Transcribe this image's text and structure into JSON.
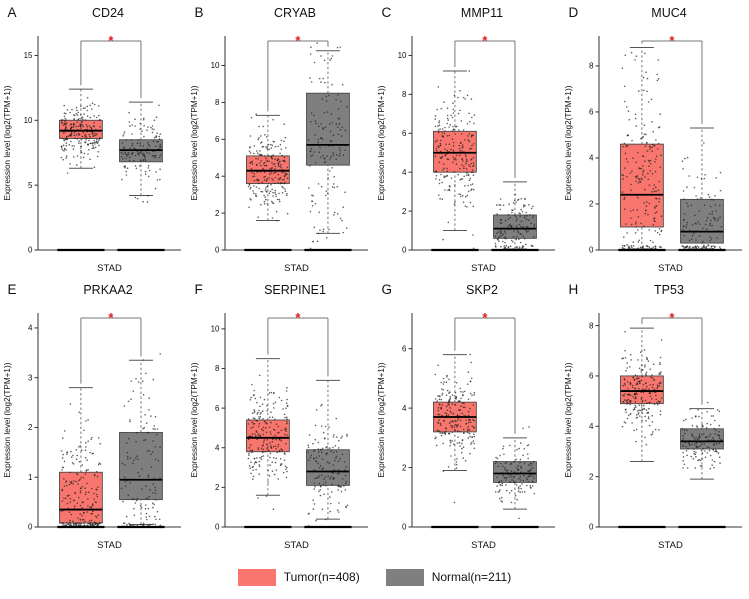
{
  "figure": {
    "background": "#ffffff",
    "point_color": "#222222",
    "axis_color": "#333333"
  },
  "legend": {
    "entries": [
      {
        "label": "Tumor(n=408)",
        "color": "#F8766D"
      },
      {
        "label": "Normal(n=211)",
        "color": "#7F7F7F"
      }
    ]
  },
  "chart_data": [
    {
      "type": "box",
      "panel": "A",
      "title": "CD24",
      "xlabel": "STAD",
      "ylabel": "Expression level (log2(TPM+1))",
      "ylim": [
        0,
        16.5
      ],
      "yticks": [
        0,
        5,
        10,
        15
      ],
      "significance": "*",
      "sig_color": "#e31a1c",
      "groups": [
        {
          "name": "Tumor",
          "color": "#F8766D",
          "whisker_low": 6.3,
          "q1": 8.6,
          "median": 9.2,
          "q3": 10.0,
          "whisker_high": 12.4,
          "zero_cluster": true
        },
        {
          "name": "Normal",
          "color": "#7F7F7F",
          "whisker_low": 4.2,
          "q1": 6.8,
          "median": 7.7,
          "q3": 8.5,
          "whisker_high": 11.4,
          "zero_cluster": true
        }
      ]
    },
    {
      "type": "box",
      "panel": "B",
      "title": "CRYAB",
      "xlabel": "STAD",
      "ylabel": "Expression level (log2(TPM+1))",
      "ylim": [
        0,
        11.6
      ],
      "yticks": [
        0,
        2,
        4,
        6,
        8,
        10
      ],
      "significance": "*",
      "sig_color": "#e31a1c",
      "groups": [
        {
          "name": "Tumor",
          "color": "#F8766D",
          "whisker_low": 1.6,
          "q1": 3.6,
          "median": 4.3,
          "q3": 5.1,
          "whisker_high": 7.3,
          "zero_cluster": true
        },
        {
          "name": "Normal",
          "color": "#7F7F7F",
          "whisker_low": 0.9,
          "q1": 4.6,
          "median": 5.7,
          "q3": 8.5,
          "whisker_high": 10.8,
          "zero_cluster": true
        }
      ]
    },
    {
      "type": "box",
      "panel": "C",
      "title": "MMP11",
      "xlabel": "STAD",
      "ylabel": "Expression level (log2(TPM+1))",
      "ylim": [
        0,
        11.0
      ],
      "yticks": [
        0,
        2,
        4,
        6,
        8,
        10
      ],
      "significance": "*",
      "sig_color": "#e31a1c",
      "groups": [
        {
          "name": "Tumor",
          "color": "#F8766D",
          "whisker_low": 1.0,
          "q1": 4.0,
          "median": 5.0,
          "q3": 6.1,
          "whisker_high": 9.2,
          "zero_cluster": true
        },
        {
          "name": "Normal",
          "color": "#7F7F7F",
          "whisker_low": 0.05,
          "q1": 0.6,
          "median": 1.1,
          "q3": 1.8,
          "whisker_high": 3.5,
          "zero_cluster": true
        }
      ]
    },
    {
      "type": "box",
      "panel": "D",
      "title": "MUC4",
      "xlabel": "STAD",
      "ylabel": "Expression level (log2(TPM+1))",
      "ylim": [
        0,
        9.3
      ],
      "yticks": [
        0,
        2,
        4,
        6,
        8
      ],
      "significance": "*",
      "sig_color": "#e31a1c",
      "groups": [
        {
          "name": "Tumor",
          "color": "#F8766D",
          "whisker_low": 0.05,
          "q1": 1.0,
          "median": 2.4,
          "q3": 4.6,
          "whisker_high": 8.8,
          "zero_cluster": true
        },
        {
          "name": "Normal",
          "color": "#7F7F7F",
          "whisker_low": 0.05,
          "q1": 0.3,
          "median": 0.8,
          "q3": 2.2,
          "whisker_high": 5.3,
          "zero_cluster": true
        }
      ]
    },
    {
      "type": "box",
      "panel": "E",
      "title": "PRKAA2",
      "xlabel": "STAD",
      "ylabel": "Expression level (log2(TPM+1))",
      "ylim": [
        0,
        4.3
      ],
      "yticks": [
        0,
        1,
        2,
        3,
        4
      ],
      "significance": "*",
      "sig_color": "#e31a1c",
      "groups": [
        {
          "name": "Tumor",
          "color": "#F8766D",
          "whisker_low": 0.02,
          "q1": 0.08,
          "median": 0.35,
          "q3": 1.1,
          "whisker_high": 2.8,
          "zero_cluster": true
        },
        {
          "name": "Normal",
          "color": "#7F7F7F",
          "whisker_low": 0.05,
          "q1": 0.55,
          "median": 0.95,
          "q3": 1.9,
          "whisker_high": 3.35,
          "zero_cluster": true
        }
      ]
    },
    {
      "type": "box",
      "panel": "F",
      "title": "SERPINE1",
      "xlabel": "STAD",
      "ylabel": "Expression level (log2(TPM+1))",
      "ylim": [
        0,
        10.8
      ],
      "yticks": [
        0,
        2,
        4,
        6,
        8,
        10
      ],
      "significance": "*",
      "sig_color": "#e31a1c",
      "groups": [
        {
          "name": "Tumor",
          "color": "#F8766D",
          "whisker_low": 1.6,
          "q1": 3.8,
          "median": 4.5,
          "q3": 5.4,
          "whisker_high": 8.5,
          "zero_cluster": true
        },
        {
          "name": "Normal",
          "color": "#7F7F7F",
          "whisker_low": 0.4,
          "q1": 2.1,
          "median": 2.8,
          "q3": 3.9,
          "whisker_high": 7.4,
          "zero_cluster": true
        }
      ]
    },
    {
      "type": "box",
      "panel": "G",
      "title": "SKP2",
      "xlabel": "STAD",
      "ylabel": "Expression level (log2(TPM+1))",
      "ylim": [
        0,
        7.2
      ],
      "yticks": [
        0,
        2,
        4,
        6
      ],
      "significance": "*",
      "sig_color": "#e31a1c",
      "groups": [
        {
          "name": "Tumor",
          "color": "#F8766D",
          "whisker_low": 1.9,
          "q1": 3.2,
          "median": 3.7,
          "q3": 4.2,
          "whisker_high": 5.8,
          "zero_cluster": true
        },
        {
          "name": "Normal",
          "color": "#7F7F7F",
          "whisker_low": 0.6,
          "q1": 1.5,
          "median": 1.8,
          "q3": 2.2,
          "whisker_high": 3.0,
          "zero_cluster": true
        }
      ]
    },
    {
      "type": "box",
      "panel": "H",
      "title": "TP53",
      "xlabel": "STAD",
      "ylabel": "Expression level (log2(TPM+1))",
      "ylim": [
        0,
        8.5
      ],
      "yticks": [
        0,
        2,
        4,
        6,
        8
      ],
      "significance": "*",
      "sig_color": "#e31a1c",
      "groups": [
        {
          "name": "Tumor",
          "color": "#F8766D",
          "whisker_low": 2.6,
          "q1": 4.9,
          "median": 5.4,
          "q3": 6.0,
          "whisker_high": 7.9,
          "zero_cluster": true
        },
        {
          "name": "Normal",
          "color": "#7F7F7F",
          "whisker_low": 1.9,
          "q1": 3.1,
          "median": 3.4,
          "q3": 3.9,
          "whisker_high": 4.7,
          "zero_cluster": true
        }
      ]
    }
  ]
}
